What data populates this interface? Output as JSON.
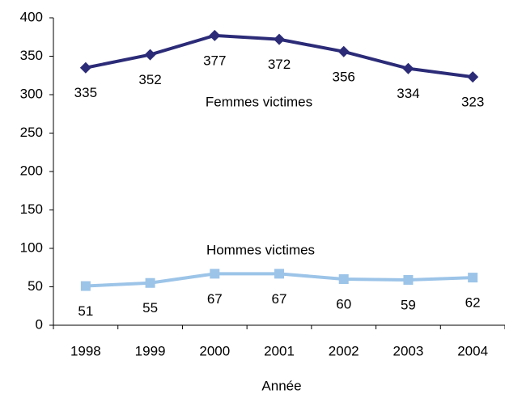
{
  "chart_data": {
    "type": "line",
    "x_label": "Année",
    "categories": [
      "1998",
      "1999",
      "2000",
      "2001",
      "2002",
      "2003",
      "2004"
    ],
    "series": [
      {
        "name": "Femmes victimes",
        "color": "#2b2b78",
        "marker": "diamond",
        "values": [
          335,
          352,
          377,
          372,
          356,
          334,
          323
        ]
      },
      {
        "name": "Hommes victimes",
        "color": "#9cc4e8",
        "marker": "square",
        "values": [
          51,
          55,
          67,
          67,
          60,
          59,
          62
        ]
      }
    ],
    "ylim": [
      0,
      400
    ],
    "yticks": [
      0,
      50,
      100,
      150,
      200,
      250,
      300,
      350,
      400
    ]
  }
}
